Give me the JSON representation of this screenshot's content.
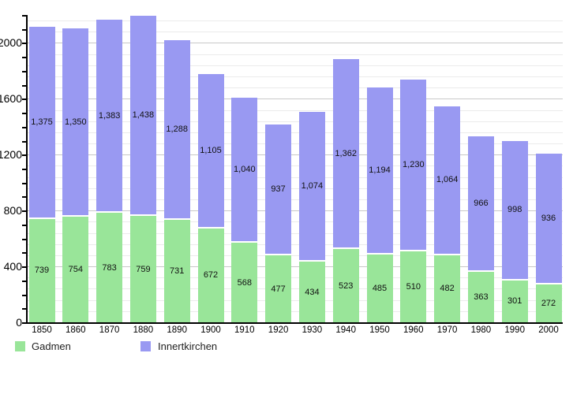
{
  "chart_data": {
    "type": "bar",
    "stacked": true,
    "title": "",
    "xlabel": "",
    "ylabel": "",
    "categories": [
      "1850",
      "1860",
      "1870",
      "1880",
      "1890",
      "1900",
      "1910",
      "1920",
      "1930",
      "1940",
      "1950",
      "1960",
      "1970",
      "1980",
      "1990",
      "2000"
    ],
    "series": [
      {
        "name": "Gadmen",
        "color": "#99E599",
        "values": [
          739,
          754,
          783,
          759,
          731,
          672,
          568,
          477,
          434,
          523,
          485,
          510,
          482,
          363,
          301,
          272
        ],
        "labels": [
          "739",
          "754",
          "783",
          "759",
          "731",
          "672",
          "568",
          "477",
          "434",
          "523",
          "485",
          "510",
          "482",
          "363",
          "301",
          "272"
        ]
      },
      {
        "name": "Innertkirchen",
        "color": "#9999F2",
        "values": [
          1375,
          1350,
          1383,
          1438,
          1288,
          1105,
          1040,
          937,
          1074,
          1362,
          1194,
          1230,
          1064,
          966,
          998,
          936
        ],
        "labels": [
          "1,375",
          "1,350",
          "1,383",
          "1,438",
          "1,288",
          "1,105",
          "1,040",
          "937",
          "1,074",
          "1,362",
          "1,194",
          "1,230",
          "1,064",
          "966",
          "998",
          "936"
        ]
      }
    ],
    "ylim": [
      0,
      2200
    ],
    "y_axis_tick_labels": [
      "0",
      "400",
      "800",
      "1200",
      "1600",
      "2000"
    ],
    "y_label_step": 400,
    "y_tick_step": 100,
    "grid_step": 80,
    "grid_on": true,
    "legend_position": "bottom-left"
  },
  "legend": {
    "items": [
      {
        "label": "Gadmen",
        "color": "#99E599"
      },
      {
        "label": "Innertkirchen",
        "color": "#9999F2"
      }
    ]
  },
  "colors": {
    "background": "#ffffff",
    "axis": "#000000",
    "grid_minor": "#ebebeb",
    "grid_major": "#c8c8c8",
    "value_text": "#111111"
  }
}
